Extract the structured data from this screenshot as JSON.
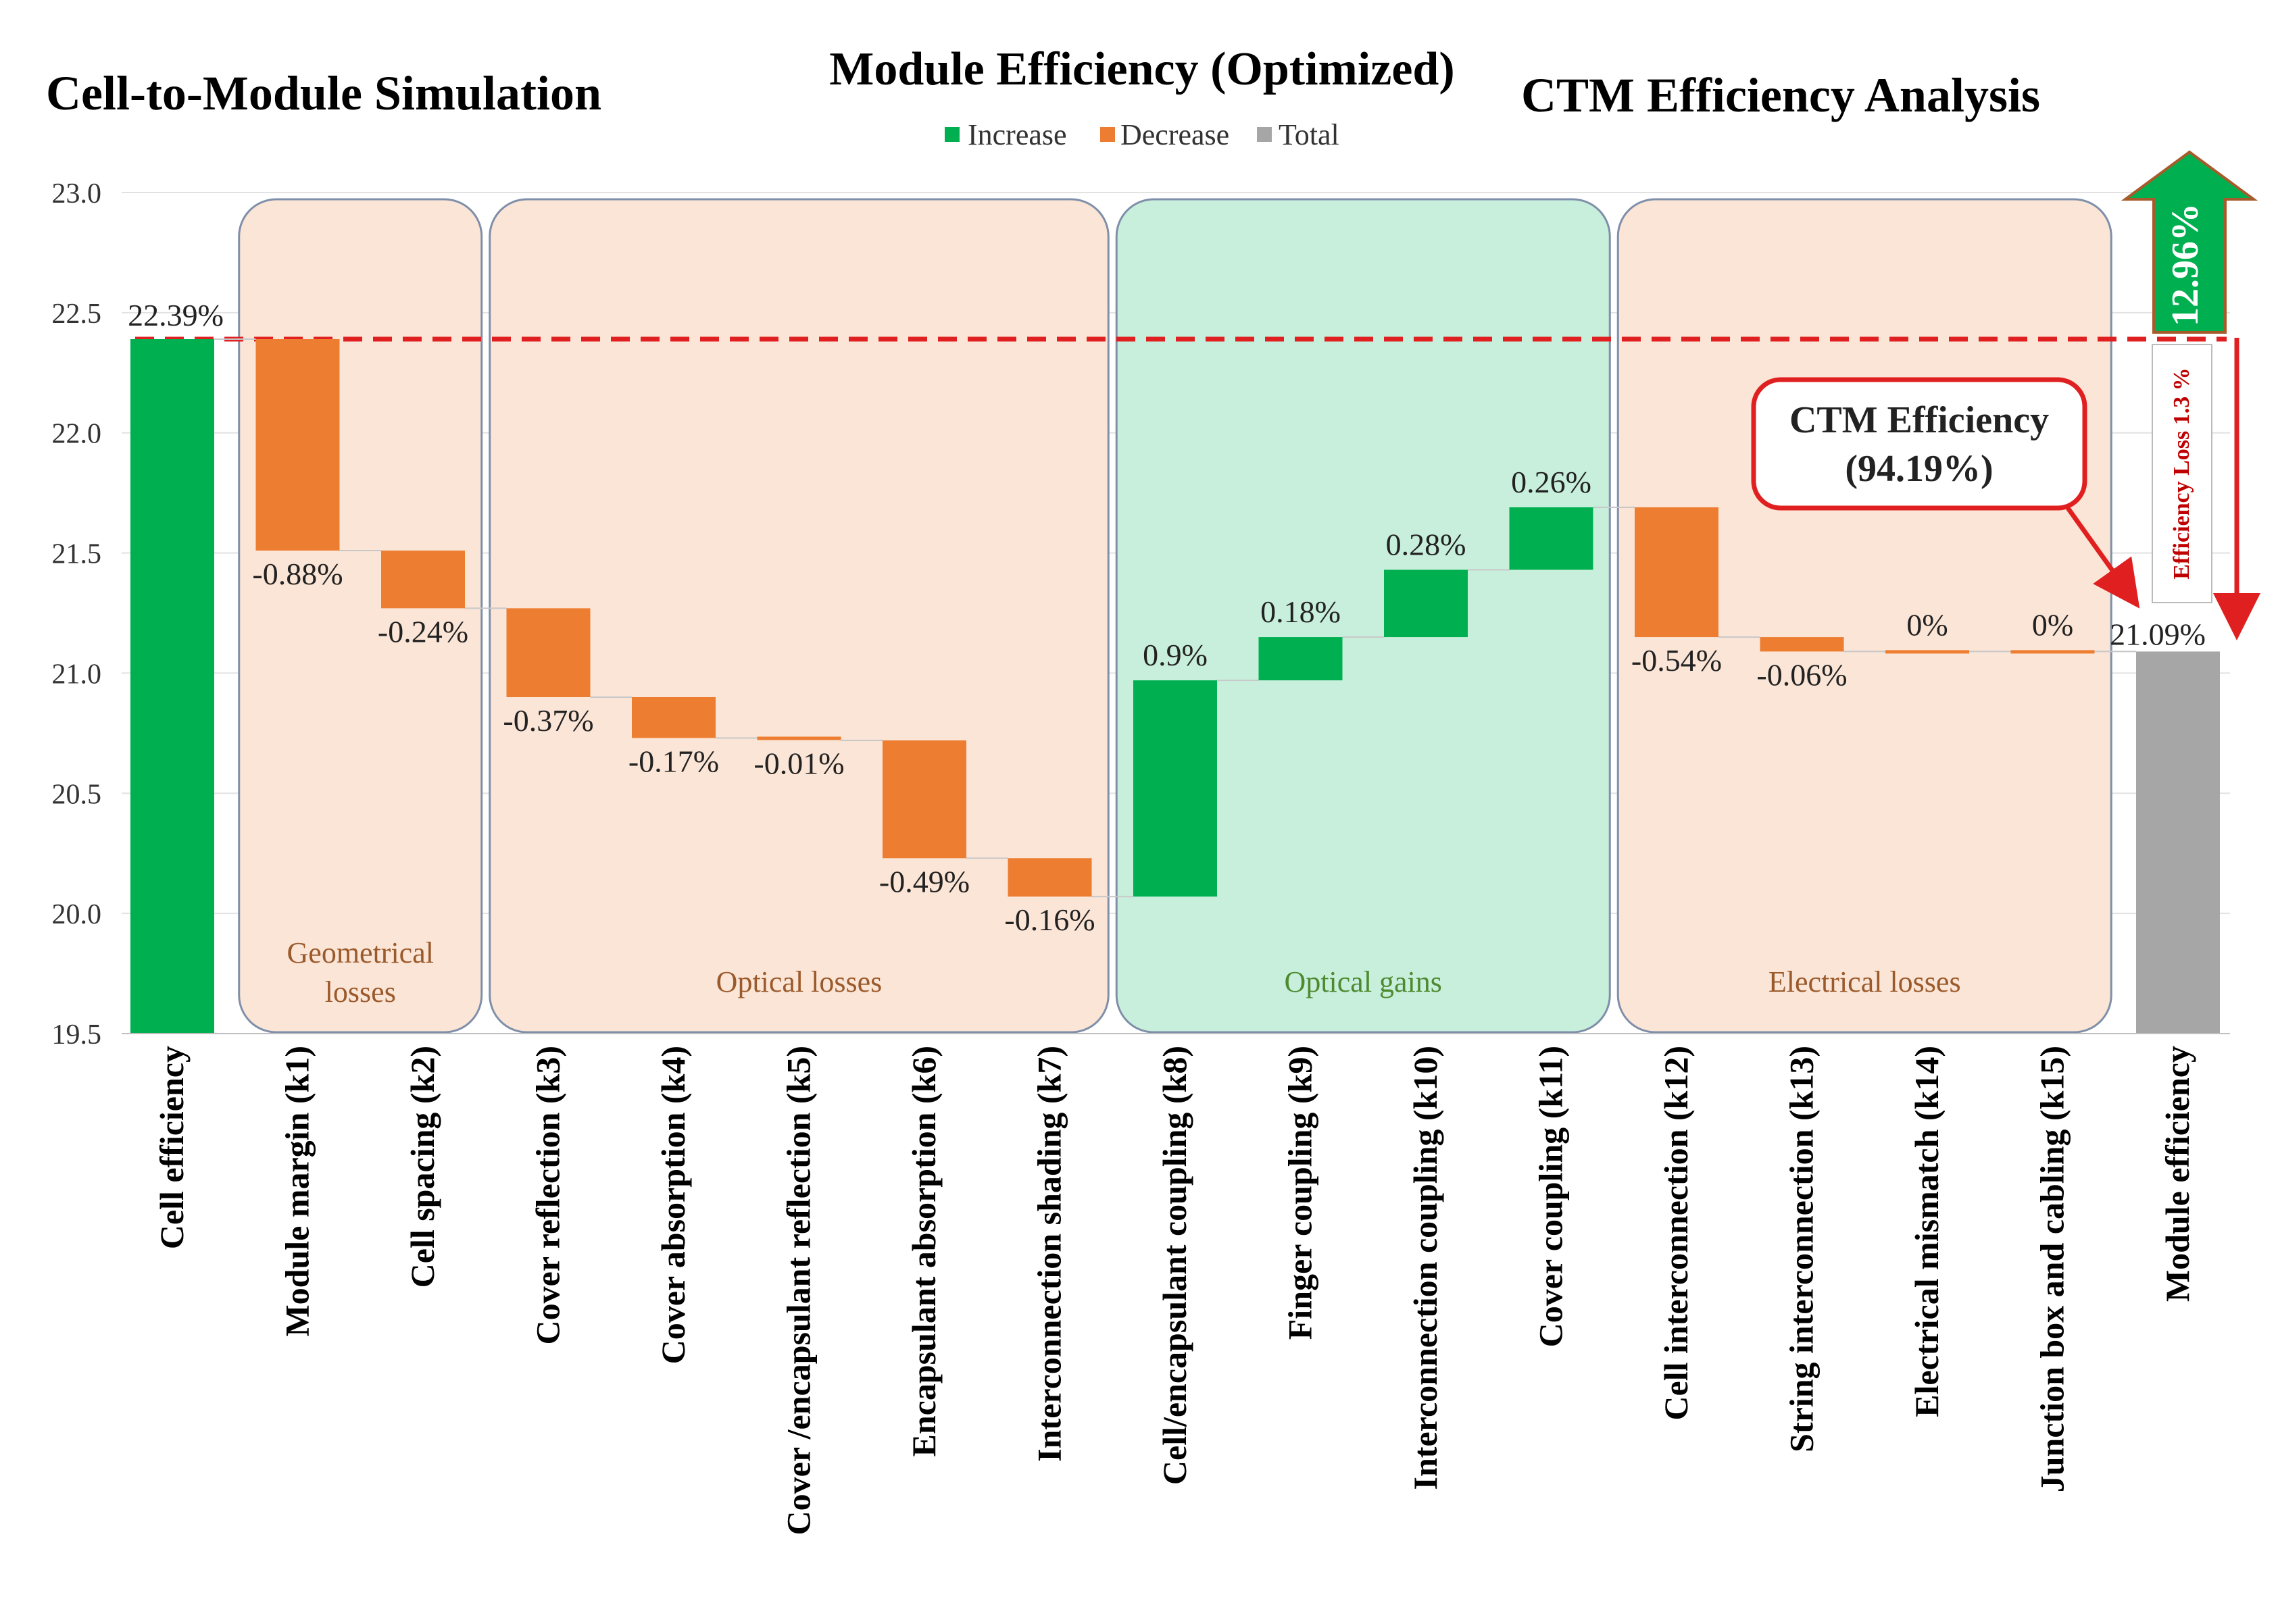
{
  "titles": {
    "left": "Cell-to-Module Simulation",
    "center": "Module Efficiency (Optimized)",
    "right": "CTM Efficiency Analysis"
  },
  "colors": {
    "increase": "#00b050",
    "decrease": "#ed7d31",
    "total": "#a6a6a6",
    "loss_panel": "#fbe5d6",
    "gain_panel": "#c8efdc",
    "panel_border": "#7f8fa9",
    "reference_line": "#e02020",
    "annotation": "#c00000"
  },
  "annotations": {
    "ctm_line1": "CTM Efficiency",
    "ctm_line2": "(94.19%)",
    "efficiency_loss": "Efficiency Loss 1.3 %",
    "gain_arrow": "12.96%"
  },
  "chart_data": {
    "type": "waterfall",
    "title": "Module Efficiency (Optimized)",
    "ylim": [
      19.5,
      23.0
    ],
    "yticks": [
      "19.5",
      "20.0",
      "20.5",
      "21.0",
      "21.5",
      "22.0",
      "22.5",
      "23.0"
    ],
    "grid": true,
    "legend": {
      "position": "top-center",
      "entries": [
        "Increase",
        "Decrease",
        "Total"
      ]
    },
    "categories": [
      "Cell efficiency",
      "Module margin (k1)",
      "Cell spacing (k2)",
      "Cover reflection (k3)",
      "Cover absorption (k4)",
      "Cover /encapsulant reflection (k5)",
      "Encapsulant absorption (k6)",
      "Interconnection shading (k7)",
      "Cell/encapsulant coupling (k8)",
      "Finger coupling (k9)",
      "Interconnection coupling (k10)",
      "Cover coupling (k11)",
      "Cell interconnection (k12)",
      "String interconnection (k13)",
      "Electrical mismatch (k14)",
      "Junction box and cabling (k15)",
      "Module efficiency"
    ],
    "kinds": [
      "total",
      "decrease",
      "decrease",
      "decrease",
      "decrease",
      "decrease",
      "decrease",
      "decrease",
      "increase",
      "increase",
      "increase",
      "increase",
      "decrease",
      "decrease",
      "decrease",
      "decrease",
      "total"
    ],
    "values": [
      22.39,
      -0.88,
      -0.24,
      -0.37,
      -0.17,
      -0.01,
      -0.49,
      -0.16,
      0.9,
      0.18,
      0.28,
      0.26,
      -0.54,
      -0.06,
      0,
      0,
      21.09
    ],
    "data_labels": [
      "22.39%",
      "-0.88%",
      "-0.24%",
      "-0.37%",
      "-0.17%",
      "-0.01%",
      "-0.49%",
      "-0.16%",
      "0.9%",
      "0.18%",
      "0.28%",
      "0.26%",
      "-0.54%",
      "-0.06%",
      "0%",
      "0%",
      "21.09%"
    ],
    "groups": [
      {
        "label": "Geometrical losses",
        "from": 1,
        "to": 2,
        "kind": "loss"
      },
      {
        "label": "Optical losses",
        "from": 3,
        "to": 7,
        "kind": "loss"
      },
      {
        "label": "Optical gains",
        "from": 8,
        "to": 11,
        "kind": "gain"
      },
      {
        "label": "Electrical losses",
        "from": 12,
        "to": 15,
        "kind": "loss"
      }
    ]
  }
}
